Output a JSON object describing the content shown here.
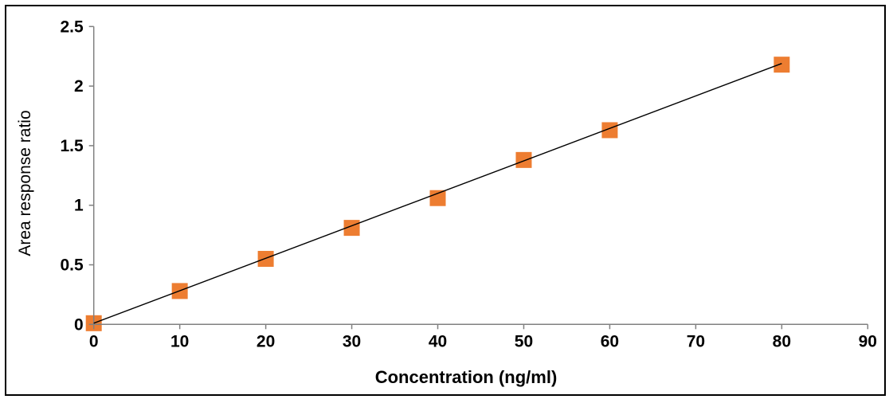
{
  "chart_data": {
    "type": "scatter",
    "title": "",
    "xlabel": "Concentration (ng/ml)",
    "ylabel": "Area response ratio",
    "x": [
      0,
      10,
      20,
      30,
      40,
      50,
      60,
      80
    ],
    "y": [
      0.01,
      0.28,
      0.55,
      0.81,
      1.06,
      1.38,
      1.63,
      2.18
    ],
    "trendline": {
      "x1": 0,
      "y1": 0.01,
      "x2": 80,
      "y2": 2.19,
      "color": "#000000"
    },
    "x_ticks": [
      "0",
      "10",
      "20",
      "30",
      "40",
      "50",
      "60",
      "70",
      "80",
      "90"
    ],
    "y_ticks": [
      "0",
      "0.5",
      "1",
      "1.5",
      "2",
      "2.5"
    ],
    "xlim": [
      0,
      90
    ],
    "ylim": [
      0,
      2.5
    ],
    "marker_shape": "square",
    "marker_color": "#ED7D31",
    "axis_color": "#808080",
    "tick_label_color": "#000000",
    "frame_border_color": "#000000",
    "grid": false,
    "legend": "none"
  }
}
